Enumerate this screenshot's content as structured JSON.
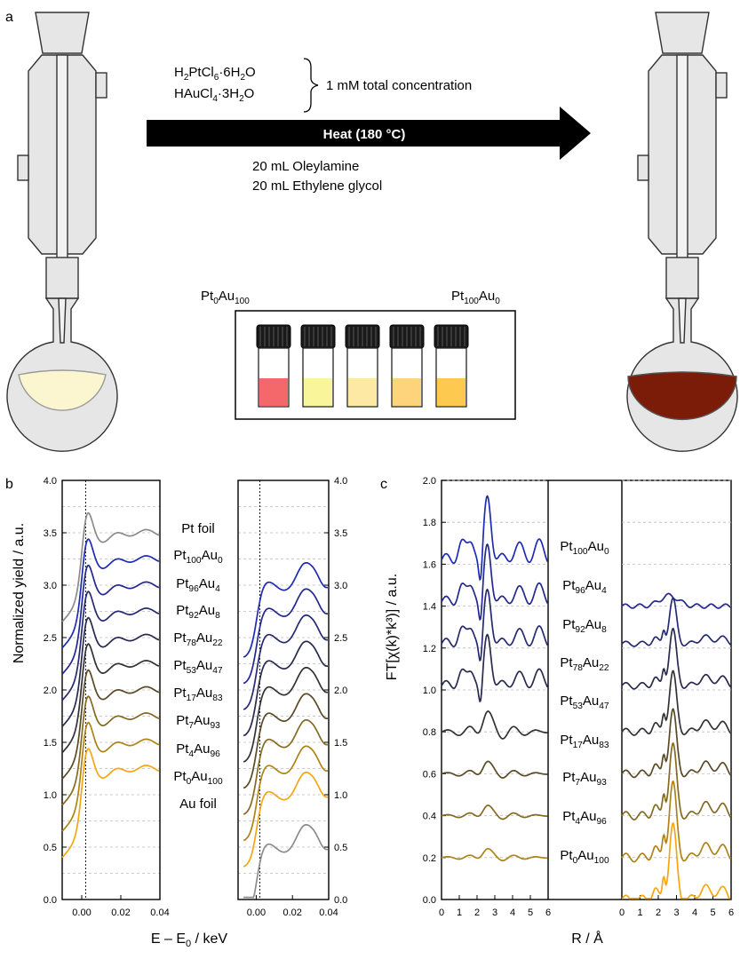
{
  "panel_a": {
    "label": "a",
    "reagents": {
      "r1": {
        "a": "H",
        "a_sub": "2",
        "b": "PtCl",
        "b_sub": "6",
        "c": "·6H",
        "c_sub": "2",
        "d": "O"
      },
      "r2": {
        "a": "HAuCl",
        "a_sub": "4",
        "b": "·3H",
        "b_sub": "2",
        "c": "O"
      },
      "note": "1 mM total concentration"
    },
    "arrow_label": "Heat (180 °C)",
    "solvents": [
      "20 mL Oleylamine",
      "20 mL Ethylene glycol"
    ],
    "vial_left": {
      "a": "Pt",
      "a_sub": "0",
      "b": "Au",
      "b_sub": "100"
    },
    "vial_right": {
      "a": "Pt",
      "a_sub": "100",
      "b": "Au",
      "b_sub": "0"
    },
    "vial_colors": [
      "#f4676b",
      "#f9f59a",
      "#fde9a4",
      "#fdd47c",
      "#fdc94e"
    ],
    "flask_before_color": "#fbf6cf",
    "flask_after_color": "#7a1c08"
  },
  "panel_b": {
    "label": "b",
    "ylabel": "Normalized yield / a.u.",
    "xlabel_main": "E – E",
    "xlabel_sub": "0",
    "xlabel_unit": " / keV",
    "yticks": [
      "0.0",
      "0.5",
      "1.0",
      "1.5",
      "2.0",
      "2.5",
      "3.0",
      "3.5",
      "4.0"
    ],
    "xticks": [
      "0.00",
      "0.02",
      "0.04"
    ],
    "labels": [
      {
        "a": "Pt foil"
      },
      {
        "a": "Pt",
        "s1": "100",
        "b": "Au",
        "s2": "0"
      },
      {
        "a": "Pt",
        "s1": "96",
        "b": "Au",
        "s2": "4"
      },
      {
        "a": "Pt",
        "s1": "92",
        "b": "Au",
        "s2": "8"
      },
      {
        "a": "Pt",
        "s1": "78",
        "b": "Au",
        "s2": "22"
      },
      {
        "a": "Pt",
        "s1": "53",
        "b": "Au",
        "s2": "47"
      },
      {
        "a": "Pt",
        "s1": "17",
        "b": "Au",
        "s2": "83"
      },
      {
        "a": "Pt",
        "s1": "7",
        "b": "Au",
        "s2": "93"
      },
      {
        "a": "Pt",
        "s1": "4",
        "b": "Au",
        "s2": "96"
      },
      {
        "a": "Pt",
        "s1": "0",
        "b": "Au",
        "s2": "100"
      },
      {
        "a": "Au foil"
      }
    ]
  },
  "panel_c": {
    "label": "c",
    "ylabel": "FT[χ(k)*k³)] / a.u.",
    "xlabel": "R / Å",
    "yticks": [
      "0.0",
      "0.2",
      "0.4",
      "0.6",
      "0.8",
      "1.0",
      "1.2",
      "1.4",
      "1.6",
      "1.8",
      "2.0"
    ],
    "xticks": [
      "0",
      "1",
      "2",
      "3",
      "4",
      "5",
      "6"
    ],
    "labels": [
      {
        "a": "Pt",
        "s1": "100",
        "b": "Au",
        "s2": "0"
      },
      {
        "a": "Pt",
        "s1": "96",
        "b": "Au",
        "s2": "4"
      },
      {
        "a": "Pt",
        "s1": "92",
        "b": "Au",
        "s2": "8"
      },
      {
        "a": "Pt",
        "s1": "78",
        "b": "Au",
        "s2": "22"
      },
      {
        "a": "Pt",
        "s1": "53",
        "b": "Au",
        "s2": "47"
      },
      {
        "a": "Pt",
        "s1": "17",
        "b": "Au",
        "s2": "83"
      },
      {
        "a": "Pt",
        "s1": "7",
        "b": "Au",
        "s2": "93"
      },
      {
        "a": "Pt",
        "s1": "4",
        "b": "Au",
        "s2": "96"
      },
      {
        "a": "Pt",
        "s1": "0",
        "b": "Au",
        "s2": "100"
      }
    ]
  },
  "colors": {
    "Pt_foil": "#8c8c8c",
    "Pt100Au0": "#1f2bb5",
    "Pt96Au4": "#23288f",
    "Pt92Au8": "#252a72",
    "Pt78Au22": "#282a4e",
    "Pt53Au47": "#333236",
    "Pt17Au83": "#5a4a25",
    "Pt7Au93": "#856a22",
    "Pt4Au96": "#ae8416",
    "Pt0Au100": "#f4a712",
    "Au_foil": "#8c8c8c"
  }
}
